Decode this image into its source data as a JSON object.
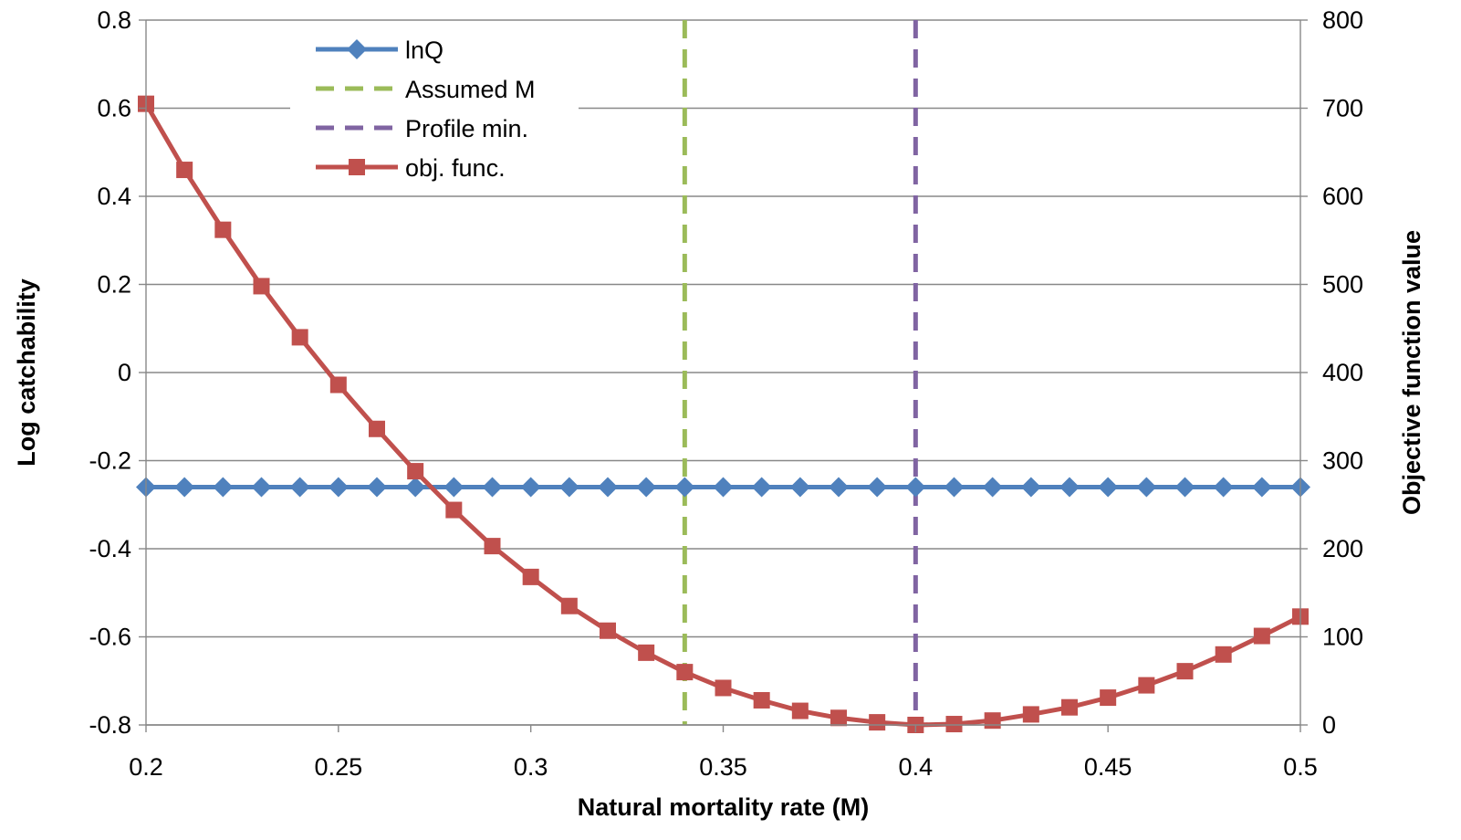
{
  "chart_data": {
    "type": "line",
    "title": "",
    "xlabel": "Natural mortality rate (M)",
    "ylabel": "Log catchability",
    "y2label": "Objective function value",
    "xlim": [
      0.2,
      0.5
    ],
    "ylim": [
      -0.8,
      0.8
    ],
    "y2lim": [
      0,
      800
    ],
    "x_ticks": [
      "0.2",
      "0.25",
      "0.3",
      "0.35",
      "0.4",
      "0.45",
      "0.5"
    ],
    "y_ticks": [
      "-0.8",
      "-0.6",
      "-0.4",
      "-0.2",
      "0",
      "0.2",
      "0.4",
      "0.6",
      "0.8"
    ],
    "y2_ticks": [
      "0",
      "100",
      "200",
      "300",
      "400",
      "500",
      "600",
      "700",
      "800"
    ],
    "grid": true,
    "legend_position": "top-left",
    "x": [
      0.2,
      0.21,
      0.22,
      0.23,
      0.24,
      0.25,
      0.26,
      0.27,
      0.28,
      0.29,
      0.3,
      0.31,
      0.32,
      0.33,
      0.34,
      0.35,
      0.36,
      0.37,
      0.38,
      0.39,
      0.4,
      0.41,
      0.42,
      0.43,
      0.44,
      0.45,
      0.46,
      0.47,
      0.48,
      0.49,
      0.5
    ],
    "series": [
      {
        "name": "lnQ",
        "axis": "left",
        "marker": "diamond",
        "color": "#4F81BD",
        "values": [
          -0.26,
          -0.26,
          -0.26,
          -0.26,
          -0.26,
          -0.26,
          -0.26,
          -0.26,
          -0.26,
          -0.26,
          -0.26,
          -0.26,
          -0.26,
          -0.26,
          -0.26,
          -0.26,
          -0.26,
          -0.26,
          -0.26,
          -0.26,
          -0.26,
          -0.26,
          -0.26,
          -0.26,
          -0.26,
          -0.26,
          -0.26,
          -0.26,
          -0.26,
          -0.26,
          -0.26
        ]
      },
      {
        "name": "Assumed M",
        "style": "dashed",
        "color": "#9BBB59",
        "x_value": 0.34
      },
      {
        "name": "Profile min.",
        "style": "dashed",
        "color": "#8064A2",
        "x_value": 0.4
      },
      {
        "name": "obj. func.",
        "axis": "right",
        "marker": "square",
        "color": "#C0504D",
        "values": [
          705,
          630,
          562,
          498,
          440,
          386,
          336,
          288,
          244,
          203,
          168,
          135,
          107,
          82,
          60,
          42,
          28,
          16,
          8,
          3,
          0,
          1,
          5,
          12,
          20,
          31,
          45,
          61,
          80,
          101,
          123
        ]
      }
    ]
  }
}
